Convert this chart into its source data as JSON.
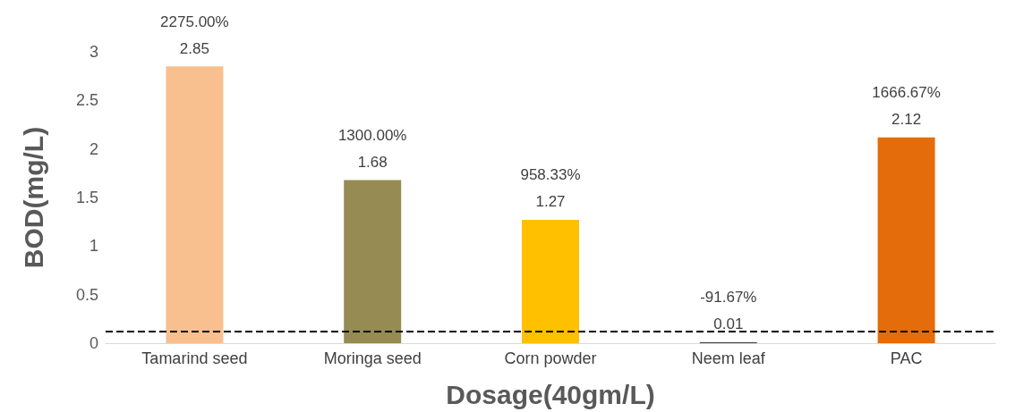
{
  "chart_data": {
    "type": "bar",
    "xlabel": "Dosage(40gm/L)",
    "ylabel": "BOD(mg/L)",
    "categories": [
      "Tamarind seed",
      "Moringa seed",
      "Corn powder",
      "Neem leaf",
      "PAC"
    ],
    "values": [
      2.85,
      1.68,
      1.27,
      0.01,
      2.12
    ],
    "colors": [
      "#f8c08f",
      "#958b53",
      "#ffc000",
      "#3a3a3a",
      "#e46c0a"
    ],
    "value_labels": [
      "2275.00%\n2.85",
      "1300.00%\n1.68",
      "958.33%\n1.27",
      "-91.67%\n0.01",
      "1666.67%\n2.12"
    ],
    "ylim": [
      0,
      3
    ],
    "yticks": [
      0,
      0.5,
      1,
      1.5,
      2,
      2.5,
      3
    ],
    "grid": false,
    "ref_lines": [
      {
        "axis": "y",
        "value": 0.12,
        "label": null,
        "color": "#000000",
        "line_style": "dashed"
      }
    ]
  }
}
